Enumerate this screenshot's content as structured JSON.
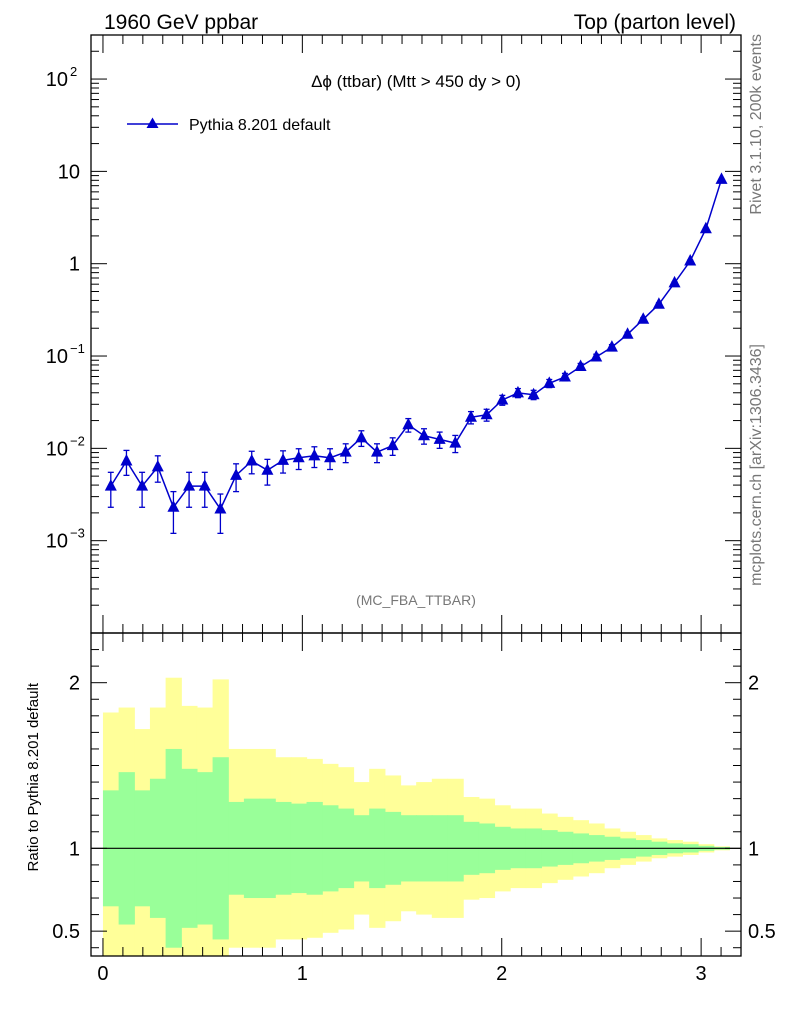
{
  "header": {
    "left": "1960 GeV ppbar",
    "right": "Top (parton level)"
  },
  "side_text": {
    "version": "Rivet 3.1.10,  200k events",
    "source": "mcplots.cern.ch [arXiv:1306.3436]"
  },
  "colors": {
    "series": "#0000cc",
    "band_inner": "#99ff99",
    "band_outer": "#ffff99"
  },
  "chart_data": [
    {
      "type": "line",
      "title": "Δϕ (ttbar) (Mtt > 450 dy > 0)",
      "analysis": "(MC_FBA_TTBAR)",
      "yscale": "log",
      "ylim": [
        0.0001,
        300
      ],
      "xlim": [
        -0.06,
        3.2
      ],
      "yticks": [
        {
          "value": 0.001,
          "base": "10",
          "exp": "−3"
        },
        {
          "value": 0.01,
          "base": "10",
          "exp": "−2"
        },
        {
          "value": 0.1,
          "base": "10",
          "exp": "−1"
        },
        {
          "value": 1,
          "base": "1",
          "exp": ""
        },
        {
          "value": 10,
          "base": "10",
          "exp": ""
        },
        {
          "value": 100,
          "base": "10",
          "exp": "2"
        }
      ],
      "legend": "top-left",
      "series": [
        {
          "name": "Pythia 8.201 default",
          "marker": "triangle",
          "x": [
            0.0393,
            0.1178,
            0.1963,
            0.2749,
            0.3534,
            0.432,
            0.5105,
            0.589,
            0.6676,
            0.7461,
            0.8247,
            0.9032,
            0.9817,
            1.0603,
            1.1388,
            1.2174,
            1.2959,
            1.3744,
            1.453,
            1.5315,
            1.6101,
            1.6886,
            1.7671,
            1.8457,
            1.9242,
            2.0028,
            2.0813,
            2.1598,
            2.2384,
            2.3169,
            2.3955,
            2.474,
            2.5525,
            2.6311,
            2.7096,
            2.7882,
            2.8667,
            2.9452,
            3.0238,
            3.1023
          ],
          "y": [
            0.0039,
            0.0073,
            0.0039,
            0.0063,
            0.0023,
            0.0039,
            0.0039,
            0.0022,
            0.0051,
            0.0073,
            0.0058,
            0.0074,
            0.0079,
            0.0083,
            0.0079,
            0.0091,
            0.013,
            0.0091,
            0.0107,
            0.018,
            0.0137,
            0.0125,
            0.0114,
            0.0217,
            0.0231,
            0.0334,
            0.0399,
            0.0381,
            0.0506,
            0.0593,
            0.0769,
            0.0976,
            0.125,
            0.172,
            0.25,
            0.364,
            0.62,
            1.07,
            2.39,
            8.2
          ],
          "yerr": [
            0.0016,
            0.0022,
            0.0016,
            0.002,
            0.0011,
            0.0016,
            0.0016,
            0.001,
            0.0017,
            0.002,
            0.0018,
            0.002,
            0.002,
            0.0021,
            0.002,
            0.0021,
            0.0025,
            0.0021,
            0.0023,
            0.003,
            0.0026,
            0.0025,
            0.0024,
            0.0033,
            0.0034,
            0.0041,
            0.0045,
            0.0044,
            0.0051,
            0.0055,
            0.0062,
            0.007,
            0.0079,
            0.0093,
            0.0112,
            0.0135,
            0.0176,
            0.0232,
            0.0346,
            0.064
          ]
        }
      ]
    },
    {
      "type": "area",
      "ylabel": "Ratio to Pythia 8.201 default",
      "xlim": [
        -0.06,
        3.2
      ],
      "ylim": [
        0.35,
        2.3
      ],
      "xticks": [
        0,
        1,
        2,
        3
      ],
      "yticks": [
        0.5,
        1,
        2
      ],
      "reference": 1,
      "bin_edges": [
        0,
        0.0785,
        0.1571,
        0.2356,
        0.3142,
        0.3927,
        0.4712,
        0.5498,
        0.6283,
        0.7069,
        0.7854,
        0.8639,
        0.9425,
        1.021,
        1.0996,
        1.1781,
        1.2566,
        1.3352,
        1.4137,
        1.4923,
        1.5708,
        1.6493,
        1.7279,
        1.8064,
        1.885,
        1.9635,
        2.042,
        2.1206,
        2.1991,
        2.2777,
        2.3562,
        2.4347,
        2.5133,
        2.5918,
        2.6704,
        2.7489,
        2.8274,
        2.906,
        2.9845,
        3.0631,
        3.1416
      ],
      "band_inner": [
        0.35,
        0.46,
        0.35,
        0.42,
        0.6,
        0.48,
        0.46,
        0.55,
        0.28,
        0.3,
        0.3,
        0.28,
        0.27,
        0.28,
        0.26,
        0.24,
        0.2,
        0.24,
        0.22,
        0.2,
        0.2,
        0.2,
        0.2,
        0.16,
        0.15,
        0.13,
        0.12,
        0.12,
        0.11,
        0.1,
        0.09,
        0.08,
        0.07,
        0.06,
        0.05,
        0.04,
        0.03,
        0.025,
        0.015,
        0.008
      ],
      "band_outer": [
        0.82,
        0.85,
        0.72,
        0.85,
        1.03,
        0.86,
        0.85,
        1.02,
        0.6,
        0.6,
        0.6,
        0.55,
        0.55,
        0.54,
        0.51,
        0.49,
        0.4,
        0.48,
        0.44,
        0.38,
        0.4,
        0.42,
        0.42,
        0.31,
        0.3,
        0.26,
        0.24,
        0.24,
        0.21,
        0.19,
        0.17,
        0.15,
        0.12,
        0.1,
        0.08,
        0.06,
        0.05,
        0.04,
        0.025,
        0.012
      ]
    }
  ]
}
